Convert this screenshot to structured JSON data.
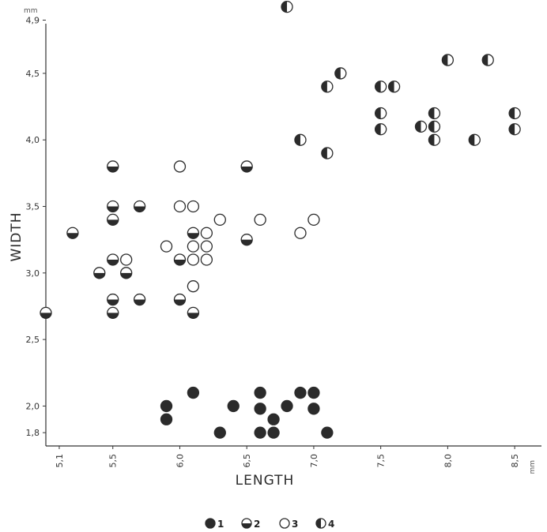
{
  "chart_data": {
    "type": "scatter",
    "xlabel": "LENGTH",
    "ylabel": "WIDTH",
    "x_unit": "mm",
    "y_unit": "mm",
    "xlim": [
      5.0,
      8.7
    ],
    "ylim": [
      1.7,
      4.98
    ],
    "x_ticks": [
      {
        "value": 5.1,
        "label": "5,1"
      },
      {
        "value": 5.5,
        "label": "5,5"
      },
      {
        "value": 6.0,
        "label": "6,0"
      },
      {
        "value": 6.5,
        "label": "6,5"
      },
      {
        "value": 7.0,
        "label": "7,0"
      },
      {
        "value": 7.5,
        "label": "7,5"
      },
      {
        "value": 8.0,
        "label": "8,0"
      },
      {
        "value": 8.5,
        "label": "8,5"
      }
    ],
    "y_ticks": [
      {
        "value": 1.8,
        "label": "1,8"
      },
      {
        "value": 2.0,
        "label": "2,0"
      },
      {
        "value": 2.5,
        "label": "2,5"
      },
      {
        "value": 3.0,
        "label": "3,0"
      },
      {
        "value": 3.5,
        "label": "3,5"
      },
      {
        "value": 4.0,
        "label": "4,0"
      },
      {
        "value": 4.5,
        "label": "4,5"
      },
      {
        "value": 4.9,
        "label": "4,9"
      }
    ],
    "grid": false,
    "legend_position": "bottom-center",
    "series": [
      {
        "name": "1",
        "marker": "filled",
        "points": [
          [
            5.9,
            2.0
          ],
          [
            5.9,
            1.9
          ],
          [
            6.1,
            2.1
          ],
          [
            6.3,
            1.8
          ],
          [
            6.4,
            2.0
          ],
          [
            6.6,
            2.1
          ],
          [
            6.6,
            1.98
          ],
          [
            6.6,
            1.8
          ],
          [
            6.7,
            1.9
          ],
          [
            6.7,
            1.8
          ],
          [
            6.8,
            2.0
          ],
          [
            6.9,
            2.1
          ],
          [
            7.0,
            2.1
          ],
          [
            7.0,
            1.98
          ],
          [
            7.1,
            1.8
          ]
        ]
      },
      {
        "name": "2",
        "marker": "bottom-half-filled",
        "points": [
          [
            5.0,
            2.7
          ],
          [
            5.2,
            3.3
          ],
          [
            5.4,
            3.0
          ],
          [
            5.5,
            3.8
          ],
          [
            5.5,
            3.5
          ],
          [
            5.5,
            3.4
          ],
          [
            5.5,
            3.1
          ],
          [
            5.5,
            2.8
          ],
          [
            5.5,
            2.7
          ],
          [
            5.6,
            3.0
          ],
          [
            5.7,
            3.5
          ],
          [
            5.7,
            2.8
          ],
          [
            6.0,
            3.1
          ],
          [
            6.0,
            2.8
          ],
          [
            6.1,
            3.3
          ],
          [
            6.1,
            2.7
          ],
          [
            6.5,
            3.8
          ],
          [
            6.5,
            3.25
          ]
        ]
      },
      {
        "name": "3",
        "marker": "open",
        "points": [
          [
            5.6,
            3.1
          ],
          [
            5.9,
            3.2
          ],
          [
            6.0,
            3.8
          ],
          [
            6.0,
            3.5
          ],
          [
            6.1,
            3.5
          ],
          [
            6.1,
            3.2
          ],
          [
            6.1,
            3.1
          ],
          [
            6.1,
            2.9
          ],
          [
            6.2,
            3.3
          ],
          [
            6.2,
            3.2
          ],
          [
            6.2,
            3.1
          ],
          [
            6.3,
            3.4
          ],
          [
            6.6,
            3.4
          ],
          [
            6.9,
            3.3
          ],
          [
            7.0,
            3.4
          ]
        ]
      },
      {
        "name": "4",
        "marker": "left-half-filled",
        "points": [
          [
            6.8,
            5.0
          ],
          [
            6.9,
            4.0
          ],
          [
            7.1,
            4.4
          ],
          [
            7.1,
            3.9
          ],
          [
            7.2,
            4.5
          ],
          [
            7.5,
            4.4
          ],
          [
            7.5,
            4.2
          ],
          [
            7.5,
            4.08
          ],
          [
            7.6,
            4.4
          ],
          [
            7.8,
            4.1
          ],
          [
            7.9,
            4.2
          ],
          [
            7.9,
            4.1
          ],
          [
            7.9,
            4.0
          ],
          [
            8.0,
            4.6
          ],
          [
            8.2,
            4.0
          ],
          [
            8.3,
            4.6
          ],
          [
            8.5,
            4.2
          ],
          [
            8.5,
            4.08
          ]
        ]
      }
    ]
  }
}
